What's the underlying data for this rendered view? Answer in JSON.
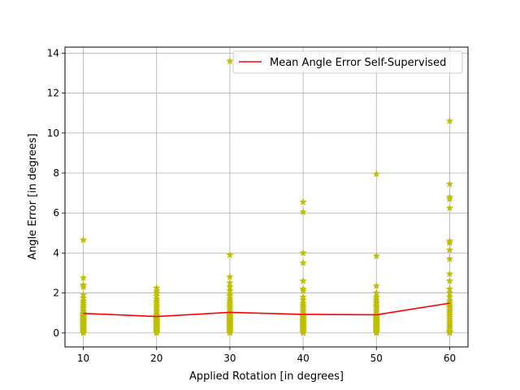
{
  "chart_data": {
    "type": "scatter",
    "title": "",
    "xlabel": "Applied Rotation [in degrees]",
    "ylabel": "Angle Error [in degrees]",
    "xlim": [
      7.5,
      62.5
    ],
    "ylim": [
      -0.7,
      14.3
    ],
    "xticks": [
      10,
      20,
      30,
      40,
      50,
      60
    ],
    "yticks": [
      0,
      2,
      4,
      6,
      8,
      10,
      12,
      14
    ],
    "grid": true,
    "legend": {
      "placement": "top-right",
      "entries": [
        "Mean Angle Error Self-Supervised"
      ]
    },
    "colors": {
      "scatter": "#bfbf00",
      "mean_line": "#ff0000",
      "grid": "#b0b0b0"
    },
    "scatter_series": [
      {
        "x": 10,
        "values": [
          4.65,
          2.75,
          2.4,
          2.3,
          1.9,
          1.75,
          1.6,
          1.5,
          1.4,
          1.3,
          1.2,
          1.1,
          1.0,
          0.95,
          0.9,
          0.85,
          0.8,
          0.75,
          0.7,
          0.65,
          0.6,
          0.55,
          0.5,
          0.45,
          0.4,
          0.35,
          0.3,
          0.25,
          0.2,
          0.15,
          0.1,
          0.05,
          0.0
        ]
      },
      {
        "x": 20,
        "values": [
          2.25,
          2.1,
          2.0,
          1.85,
          1.7,
          1.6,
          1.5,
          1.4,
          1.3,
          1.2,
          1.1,
          1.0,
          0.9,
          0.85,
          0.8,
          0.75,
          0.7,
          0.65,
          0.6,
          0.55,
          0.5,
          0.45,
          0.4,
          0.35,
          0.3,
          0.25,
          0.2,
          0.15,
          0.1,
          0.05,
          0.0
        ]
      },
      {
        "x": 30,
        "values": [
          13.6,
          3.9,
          2.8,
          2.5,
          2.3,
          2.1,
          1.95,
          1.85,
          1.7,
          1.6,
          1.5,
          1.4,
          1.3,
          1.2,
          1.1,
          1.0,
          0.9,
          0.85,
          0.8,
          0.75,
          0.7,
          0.65,
          0.6,
          0.55,
          0.5,
          0.45,
          0.4,
          0.35,
          0.3,
          0.25,
          0.2,
          0.15,
          0.1,
          0.05,
          0.0
        ]
      },
      {
        "x": 40,
        "values": [
          6.55,
          6.05,
          4.0,
          3.5,
          2.6,
          2.2,
          2.1,
          1.8,
          1.65,
          1.5,
          1.4,
          1.3,
          1.2,
          1.1,
          1.0,
          0.9,
          0.85,
          0.8,
          0.75,
          0.7,
          0.65,
          0.6,
          0.55,
          0.5,
          0.45,
          0.4,
          0.35,
          0.3,
          0.25,
          0.2,
          0.15,
          0.1,
          0.05,
          0.0
        ]
      },
      {
        "x": 50,
        "values": [
          7.95,
          3.85,
          2.35,
          2.0,
          1.8,
          1.7,
          1.6,
          1.5,
          1.4,
          1.3,
          1.2,
          1.1,
          1.0,
          0.9,
          0.85,
          0.8,
          0.75,
          0.7,
          0.65,
          0.6,
          0.55,
          0.5,
          0.45,
          0.4,
          0.35,
          0.3,
          0.25,
          0.2,
          0.15,
          0.1,
          0.05,
          0.0
        ]
      },
      {
        "x": 60,
        "values": [
          10.6,
          7.45,
          6.8,
          6.7,
          6.25,
          4.6,
          4.5,
          4.15,
          3.7,
          2.95,
          2.6,
          2.2,
          2.0,
          1.8,
          1.6,
          1.5,
          1.4,
          1.3,
          1.2,
          1.1,
          1.0,
          0.9,
          0.8,
          0.7,
          0.6,
          0.5,
          0.4,
          0.3,
          0.2,
          0.1,
          0.05,
          0.0
        ]
      }
    ],
    "series": [
      {
        "name": "Mean Angle Error Self-Supervised",
        "x": [
          10,
          20,
          30,
          40,
          50,
          60
        ],
        "values": [
          0.98,
          0.82,
          1.03,
          0.93,
          0.91,
          1.49
        ]
      }
    ]
  }
}
